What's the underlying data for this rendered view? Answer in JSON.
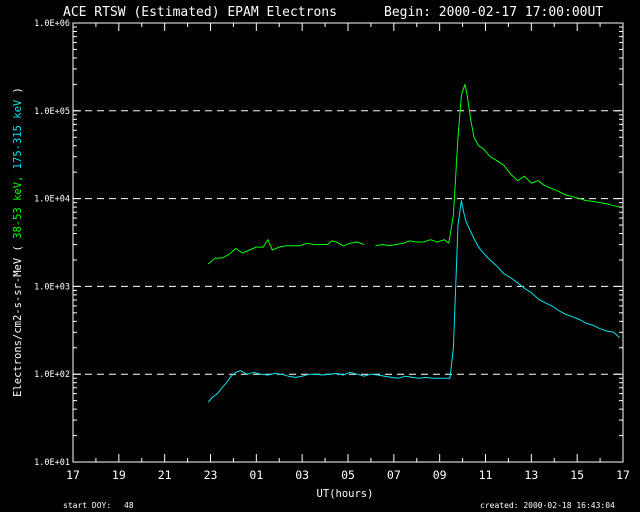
{
  "header": {
    "title": "ACE RTSW (Estimated) EPAM Electrons",
    "begin": "Begin: 2000-02-17 17:00:00UT"
  },
  "footer": {
    "start_doy_label": "start DOY:",
    "start_doy_value": "48",
    "created": "created:  2000-02-18 16:43:04"
  },
  "colors": {
    "background": "#000000",
    "axes": "#ffffff",
    "grid": "#ffffff",
    "series_low": "#00ff00",
    "series_high": "#00e5ee"
  },
  "chart_data": {
    "type": "line",
    "title": "ACE RTSW (Estimated) EPAM Electrons",
    "xlabel": "UT(hours)",
    "ylabel_parts": [
      {
        "text": "Electrons/cm2-s-sr-MeV  ( ",
        "color": "#ffffff"
      },
      {
        "text": "38-53 keV, ",
        "color": "#00ff00"
      },
      {
        "text": "175-315 keV",
        "color": "#00e5ee"
      },
      {
        "text": " )",
        "color": "#ffffff"
      }
    ],
    "x_unit": "hours after 2000-02-17 17:00 UT",
    "xlim": [
      0,
      24
    ],
    "ylim": [
      10,
      1000000
    ],
    "yscale": "log",
    "x_tick_labels": [
      "17",
      "19",
      "21",
      "23",
      "01",
      "03",
      "05",
      "07",
      "09",
      "11",
      "13",
      "15",
      "17"
    ],
    "y_tick_labels": [
      {
        "value": 10,
        "label": "1.0E+01"
      },
      {
        "value": 100,
        "label": "1.0E+02"
      },
      {
        "value": 1000,
        "label": "1.0E+03"
      },
      {
        "value": 10000,
        "label": "1.0E+04"
      },
      {
        "value": 100000,
        "label": "1.0E+05"
      },
      {
        "value": 1000000,
        "label": "1.0E+06"
      }
    ],
    "grid_lines_y": [
      100,
      1000,
      10000,
      100000
    ],
    "series": [
      {
        "name": "38-53 keV",
        "color": "#00ff00",
        "segments": [
          {
            "x": [
              5.9,
              6.2,
              6.5,
              6.8,
              7.1,
              7.4,
              7.7,
              8.0,
              8.3,
              8.5,
              8.7,
              9.0,
              9.3,
              9.6,
              9.9,
              10.2,
              10.5,
              10.8,
              11.1,
              11.3,
              11.5,
              11.8,
              12.1,
              12.4,
              12.7
            ],
            "y": [
              1800,
              2100,
              2100,
              2300,
              2700,
              2400,
              2600,
              2800,
              2800,
              3400,
              2600,
              2800,
              2900,
              2900,
              2900,
              3100,
              3000,
              3000,
              3000,
              3300,
              3200,
              2900,
              3100,
              3200,
              3000
            ]
          },
          {
            "x": [
              13.2,
              13.5,
              13.8,
              14.1,
              14.4,
              14.7,
              15.0,
              15.3,
              15.6,
              15.9,
              16.2,
              16.4
            ],
            "y": [
              2900,
              3000,
              2900,
              3000,
              3100,
              3300,
              3200,
              3200,
              3400,
              3200,
              3400,
              3100
            ]
          },
          {
            "x": [
              16.4,
              16.6,
              16.8,
              16.95,
              17.1,
              17.2,
              17.35,
              17.5,
              17.7,
              17.9,
              18.2,
              18.5,
              18.8,
              19.1,
              19.4,
              19.7,
              20.0,
              20.3,
              20.6,
              20.9,
              21.2,
              21.5,
              21.8,
              22.1,
              22.4,
              22.7,
              23.0,
              23.3,
              23.6,
              23.85
            ],
            "y": [
              3100,
              6500,
              50000,
              150000,
              200000,
              150000,
              80000,
              50000,
              40000,
              37000,
              30000,
              27000,
              24000,
              19000,
              16000,
              18000,
              15000,
              16000,
              14000,
              13000,
              12000,
              11000,
              10500,
              10000,
              9500,
              9300,
              9000,
              8700,
              8300,
              8000
            ]
          }
        ]
      },
      {
        "name": "175-315 keV",
        "color": "#00e5ee",
        "segments": [
          {
            "x": [
              5.9,
              6.1,
              6.3,
              6.5,
              6.7,
              6.9,
              7.1,
              7.3,
              7.6,
              7.9,
              8.2,
              8.5,
              8.8,
              9.1,
              9.4,
              9.7,
              10.0,
              10.3,
              10.6,
              10.9,
              11.2,
              11.5,
              11.8,
              12.1,
              12.4,
              12.7,
              13.0,
              13.3,
              13.6,
              13.9,
              14.2,
              14.5,
              14.8,
              15.1,
              15.4,
              15.7,
              16.0,
              16.3,
              16.45,
              16.6,
              16.8,
              16.95,
              17.05,
              17.15,
              17.3,
              17.5,
              17.7,
              17.9,
              18.2,
              18.5,
              18.8,
              19.1,
              19.4,
              19.7,
              20.0,
              20.3,
              20.6,
              20.9,
              21.2,
              21.5,
              21.8,
              22.1,
              22.4,
              22.7,
              23.0,
              23.3,
              23.6,
              23.85
            ],
            "y": [
              48,
              55,
              60,
              70,
              80,
              95,
              105,
              110,
              100,
              105,
              100,
              98,
              102,
              100,
              95,
              92,
              95,
              100,
              100,
              98,
              100,
              102,
              98,
              105,
              100,
              95,
              100,
              98,
              95,
              92,
              90,
              95,
              92,
              90,
              92,
              90,
              90,
              90,
              90,
              200,
              5000,
              9500,
              7000,
              5500,
              4500,
              3500,
              2800,
              2400,
              2000,
              1700,
              1400,
              1250,
              1100,
              950,
              850,
              720,
              650,
              600,
              530,
              480,
              450,
              420,
              380,
              360,
              330,
              310,
              300,
              260
            ]
          }
        ]
      }
    ]
  }
}
